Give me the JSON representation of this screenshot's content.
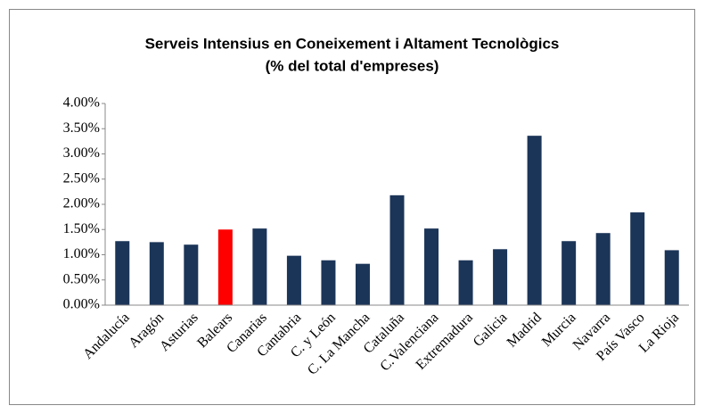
{
  "chart_data": {
    "type": "bar",
    "title": "Serveis Intensius en Coneixement i Altament Tecnològics",
    "subtitle": "(% del total d'empreses)",
    "categories": [
      "Andalucía",
      "Aragón",
      "Asturias",
      "Balears",
      "Canarias",
      "Cantabria",
      "C. y León",
      "C. La Mancha",
      "Cataluña",
      "C.Valenciana",
      "Extremadura",
      "Galicia",
      "Madrid",
      "Murcia",
      "Navarra",
      "País Vasco",
      "La Rioja"
    ],
    "values": [
      1.27,
      1.25,
      1.2,
      1.5,
      1.52,
      0.98,
      0.89,
      0.82,
      2.18,
      1.52,
      0.89,
      1.11,
      3.36,
      1.27,
      1.43,
      1.84,
      1.09
    ],
    "colors": [
      "#1b3558",
      "#1b3558",
      "#1b3558",
      "#ff0000",
      "#1b3558",
      "#1b3558",
      "#1b3558",
      "#1b3558",
      "#1b3558",
      "#1b3558",
      "#1b3558",
      "#1b3558",
      "#1b3558",
      "#1b3558",
      "#1b3558",
      "#1b3558",
      "#1b3558"
    ],
    "ylim": [
      0,
      4
    ],
    "yticks": [
      {
        "value": 0,
        "label": "0.00%"
      },
      {
        "value": 0.5,
        "label": "0.50%"
      },
      {
        "value": 1,
        "label": "1.00%"
      },
      {
        "value": 1.5,
        "label": "1.50%"
      },
      {
        "value": 2,
        "label": "2.00%"
      },
      {
        "value": 2.5,
        "label": "2.50%"
      },
      {
        "value": 3,
        "label": "3.00%"
      },
      {
        "value": 3.5,
        "label": "3.50%"
      },
      {
        "value": 4,
        "label": "4.00%"
      }
    ],
    "grid": false
  }
}
